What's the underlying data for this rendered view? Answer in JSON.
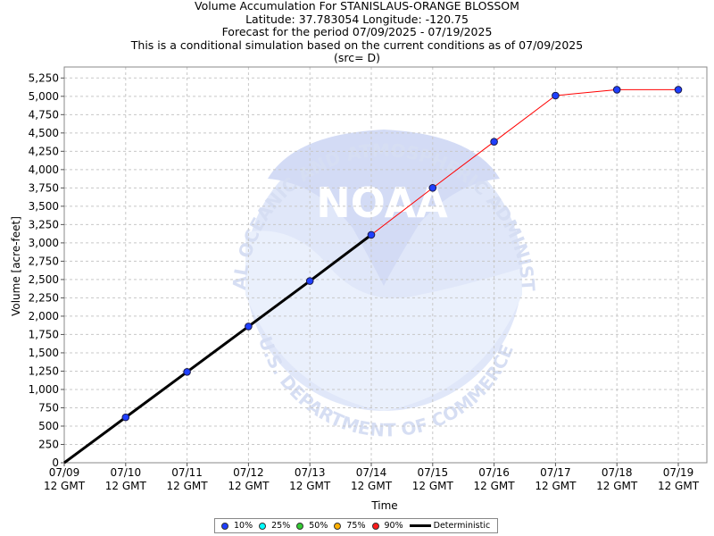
{
  "chart_data": {
    "type": "line",
    "title_lines": [
      "Volume Accumulation For STANISLAUS-ORANGE BLOSSOM",
      "Latitude: 37.783054 Longitude: -120.75",
      "Forecast for the period 07/09/2025 - 07/19/2025",
      "This is a conditional simulation based on the current conditions as of 07/09/2025",
      "(src= D)"
    ],
    "xlabel": "Time",
    "ylabel": "Volume [acre-feet]",
    "x": [
      "07/09 12 GMT",
      "07/10 12 GMT",
      "07/11 12 GMT",
      "07/12 12 GMT",
      "07/13 12 GMT",
      "07/14 12 GMT",
      "07/15 12 GMT",
      "07/16 12 GMT",
      "07/17 12 GMT",
      "07/18 12 GMT",
      "07/19 12 GMT"
    ],
    "x_ticks": [
      {
        "date": "07/09",
        "time": "12 GMT"
      },
      {
        "date": "07/10",
        "time": "12 GMT"
      },
      {
        "date": "07/11",
        "time": "12 GMT"
      },
      {
        "date": "07/12",
        "time": "12 GMT"
      },
      {
        "date": "07/13",
        "time": "12 GMT"
      },
      {
        "date": "07/14",
        "time": "12 GMT"
      },
      {
        "date": "07/15",
        "time": "12 GMT"
      },
      {
        "date": "07/16",
        "time": "12 GMT"
      },
      {
        "date": "07/17",
        "time": "12 GMT"
      },
      {
        "date": "07/18",
        "time": "12 GMT"
      },
      {
        "date": "07/19",
        "time": "12 GMT"
      }
    ],
    "y_ticks": [
      0,
      250,
      500,
      750,
      1000,
      1250,
      1500,
      1750,
      2000,
      2250,
      2500,
      2750,
      3000,
      3250,
      3500,
      3750,
      4000,
      4250,
      4500,
      4750,
      5000,
      5250
    ],
    "y_tick_labels": [
      "0",
      "250",
      "500",
      "750",
      "1,000",
      "1,250",
      "1,500",
      "1,750",
      "2,000",
      "2,250",
      "2,500",
      "2,750",
      "3,000",
      "3,250",
      "3,500",
      "3,750",
      "4,000",
      "4,250",
      "4,500",
      "4,750",
      "5,000",
      "5,250"
    ],
    "ylim": [
      0,
      5400
    ],
    "grid": true,
    "series": [
      {
        "name": "10%",
        "color": "#0000ff",
        "values": [
          0,
          620,
          1240,
          1860,
          2480,
          3110,
          3750,
          4380,
          5010,
          5090,
          5090
        ]
      },
      {
        "name": "25%",
        "color": "#00ffff",
        "values": [
          0,
          620,
          1240,
          1860,
          2480,
          3110,
          3750,
          4380,
          5010,
          5090,
          5090
        ]
      },
      {
        "name": "50%",
        "color": "#00cc00",
        "values": [
          0,
          620,
          1240,
          1860,
          2480,
          3110,
          3750,
          4380,
          5010,
          5090,
          5090
        ]
      },
      {
        "name": "75%",
        "color": "#ffb000",
        "values": [
          0,
          620,
          1240,
          1860,
          2480,
          3110,
          3750,
          4380,
          5010,
          5090,
          5090
        ]
      },
      {
        "name": "90%",
        "color": "#ff0000",
        "values": [
          0,
          620,
          1240,
          1860,
          2480,
          3110,
          3750,
          4380,
          5010,
          5090,
          5090
        ]
      },
      {
        "name": "Deterministic",
        "color": "#000000",
        "values": [
          0,
          620,
          1240,
          1860,
          2480,
          3110,
          null,
          null,
          null,
          null,
          null
        ]
      }
    ],
    "legend_position": "bottom-center"
  },
  "watermark": {
    "logo_text": "NOAA",
    "ring_top": "NATIONAL OCEANIC AND ATMOSPHERIC ADMINISTRATION",
    "ring_bottom": "U.S. DEPARTMENT OF COMMERCE"
  }
}
